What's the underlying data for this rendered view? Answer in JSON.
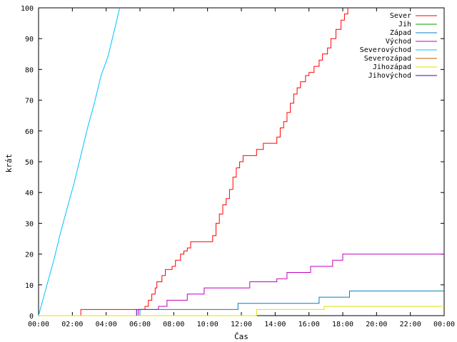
{
  "chart_data": {
    "type": "line",
    "title": "",
    "xlabel": "Čas",
    "ylabel": "krát",
    "xlim_hours": [
      0,
      24
    ],
    "ylim": [
      0,
      100
    ],
    "x_tick_labels": [
      "00:00",
      "02:00",
      "04:00",
      "06:00",
      "08:00",
      "10:00",
      "12:00",
      "14:00",
      "16:00",
      "18:00",
      "20:00",
      "22:00",
      "00:00"
    ],
    "y_ticks": [
      0,
      10,
      20,
      30,
      40,
      50,
      60,
      70,
      80,
      90,
      100
    ],
    "grid": false,
    "legend_position": "top-right",
    "series": [
      {
        "name": "Sever",
        "color": "#ff0000",
        "step": true,
        "points": [
          [
            0,
            0
          ],
          [
            2.5,
            0
          ],
          [
            2.5,
            2
          ],
          [
            6.2,
            2
          ],
          [
            6.3,
            3
          ],
          [
            6.5,
            5
          ],
          [
            6.7,
            7
          ],
          [
            6.9,
            9
          ],
          [
            7.0,
            11
          ],
          [
            7.3,
            13
          ],
          [
            7.5,
            15
          ],
          [
            7.9,
            16
          ],
          [
            8.1,
            18
          ],
          [
            8.4,
            20
          ],
          [
            8.6,
            21
          ],
          [
            8.8,
            22
          ],
          [
            9.0,
            24
          ],
          [
            10.2,
            24
          ],
          [
            10.3,
            26
          ],
          [
            10.5,
            30
          ],
          [
            10.7,
            33
          ],
          [
            10.9,
            36
          ],
          [
            11.1,
            38
          ],
          [
            11.3,
            41
          ],
          [
            11.5,
            45
          ],
          [
            11.7,
            48
          ],
          [
            11.9,
            50
          ],
          [
            12.1,
            52
          ],
          [
            12.8,
            52
          ],
          [
            12.9,
            54
          ],
          [
            13.3,
            56
          ],
          [
            13.9,
            56
          ],
          [
            14.1,
            58
          ],
          [
            14.3,
            61
          ],
          [
            14.5,
            63
          ],
          [
            14.7,
            66
          ],
          [
            14.9,
            69
          ],
          [
            15.1,
            72
          ],
          [
            15.3,
            74
          ],
          [
            15.5,
            76
          ],
          [
            15.8,
            78
          ],
          [
            16.0,
            79
          ],
          [
            16.3,
            81
          ],
          [
            16.6,
            83
          ],
          [
            16.8,
            85
          ],
          [
            17.1,
            87
          ],
          [
            17.3,
            90
          ],
          [
            17.6,
            93
          ],
          [
            17.9,
            96
          ],
          [
            18.1,
            98
          ],
          [
            18.3,
            100
          ]
        ]
      },
      {
        "name": "Jih",
        "color": "#00a000",
        "step": true,
        "points": []
      },
      {
        "name": "Západ",
        "color": "#0080c0",
        "step": true,
        "points": [
          [
            0,
            0
          ],
          [
            6.0,
            0
          ],
          [
            6.0,
            2
          ],
          [
            11.8,
            2
          ],
          [
            11.8,
            4
          ],
          [
            16.6,
            4
          ],
          [
            16.6,
            6
          ],
          [
            18.4,
            6
          ],
          [
            18.4,
            8
          ],
          [
            24,
            8
          ]
        ]
      },
      {
        "name": "Východ",
        "color": "#c000c0",
        "step": true,
        "points": [
          [
            0,
            0
          ],
          [
            5.9,
            0
          ],
          [
            5.9,
            2
          ],
          [
            7.1,
            2
          ],
          [
            7.1,
            3
          ],
          [
            7.6,
            3
          ],
          [
            7.6,
            5
          ],
          [
            8.8,
            5
          ],
          [
            8.8,
            7
          ],
          [
            9.8,
            7
          ],
          [
            9.8,
            9
          ],
          [
            12.5,
            9
          ],
          [
            12.5,
            11
          ],
          [
            14.1,
            11
          ],
          [
            14.1,
            12
          ],
          [
            14.7,
            12
          ],
          [
            14.7,
            14
          ],
          [
            16.1,
            14
          ],
          [
            16.1,
            16
          ],
          [
            17.4,
            16
          ],
          [
            17.4,
            18
          ],
          [
            18.0,
            18
          ],
          [
            18.0,
            20
          ],
          [
            24,
            20
          ]
        ]
      },
      {
        "name": "Severovýchod",
        "color": "#00c0ff",
        "step": false,
        "points": [
          [
            0,
            0
          ],
          [
            0.5,
            10
          ],
          [
            0.9,
            18
          ],
          [
            1.3,
            27
          ],
          [
            1.7,
            35
          ],
          [
            2.1,
            43
          ],
          [
            2.5,
            52
          ],
          [
            2.9,
            61
          ],
          [
            3.3,
            69
          ],
          [
            3.7,
            78
          ],
          [
            4.1,
            84
          ],
          [
            4.5,
            93
          ],
          [
            4.8,
            100
          ]
        ]
      },
      {
        "name": "Severozápad",
        "color": "#c06000",
        "step": true,
        "points": []
      },
      {
        "name": "Jihozápad",
        "color": "#e0e000",
        "step": true,
        "points": [
          [
            0,
            0
          ],
          [
            12.9,
            0
          ],
          [
            12.9,
            2
          ],
          [
            16.9,
            2
          ],
          [
            16.9,
            3
          ],
          [
            24,
            3
          ]
        ]
      },
      {
        "name": "Jihovýchod",
        "color": "#4000c0",
        "step": true,
        "points": [
          [
            5.8,
            0
          ],
          [
            5.8,
            2
          ]
        ]
      }
    ]
  }
}
